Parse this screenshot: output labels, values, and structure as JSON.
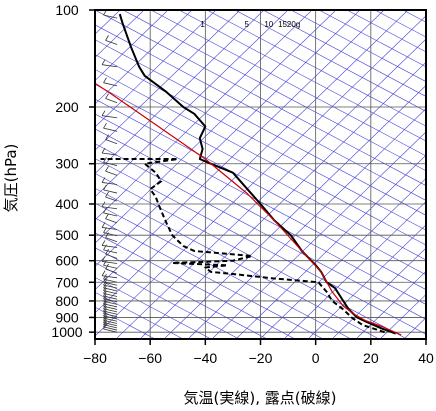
{
  "chart_data": {
    "type": "line",
    "title": "",
    "xlabel": "気温(実線), 露点(破線)",
    "ylabel": "気圧(hPa)",
    "xlim": [
      -80,
      40
    ],
    "ylim": [
      1050,
      100
    ],
    "y_scale": "log",
    "x_ticks": [
      -80,
      -60,
      -40,
      -20,
      0,
      20,
      40
    ],
    "x_tick_labels": [
      "−80",
      "−60",
      "−40",
      "−20",
      "0",
      "20",
      "40"
    ],
    "y_ticks": [
      100,
      200,
      300,
      400,
      500,
      600,
      700,
      800,
      900,
      1000
    ],
    "y_tick_labels": [
      "100",
      "200",
      "300",
      "400",
      "500",
      "600",
      "700",
      "800",
      "900",
      "1000"
    ],
    "mixing_ratio_labels": [
      "1",
      "5",
      "10",
      "15",
      "20g"
    ],
    "mixing_ratio_label_x": [
      -41,
      -25,
      -17,
      -12,
      -8
    ],
    "colors": {
      "temperature": "#000000",
      "dewpoint": "#000000",
      "parcel": "#cc0000",
      "dry_adiabat": "#4444dd",
      "isotherm": "#4444dd",
      "grid": "#555555",
      "wind_barb": "#333333"
    },
    "series": [
      {
        "name": "",
        "style": "solid",
        "points": [
          [
            29,
            1010
          ],
          [
            24,
            975
          ],
          [
            18,
            925
          ],
          [
            15,
            900
          ],
          [
            12,
            850
          ],
          [
            10,
            800
          ],
          [
            7,
            730
          ],
          [
            4,
            700
          ],
          [
            2,
            650
          ],
          [
            0,
            620
          ],
          [
            -5,
            560
          ],
          [
            -9,
            500
          ],
          [
            -15,
            450
          ],
          [
            -20,
            400
          ],
          [
            -26,
            350
          ],
          [
            -30,
            320
          ],
          [
            -38,
            300
          ],
          [
            -42,
            290
          ],
          [
            -41,
            270
          ],
          [
            -42,
            250
          ],
          [
            -40,
            230
          ],
          [
            -44,
            210
          ],
          [
            -48,
            200
          ],
          [
            -54,
            180
          ],
          [
            -62,
            160
          ],
          [
            -64,
            150
          ],
          [
            -67,
            130
          ],
          [
            -70,
            110
          ],
          [
            -71,
            103
          ]
        ]
      },
      {
        "name": "",
        "style": "dashed",
        "points": [
          [
            25,
            1000
          ],
          [
            17,
            950
          ],
          [
            13,
            900
          ],
          [
            10,
            850
          ],
          [
            6,
            800
          ],
          [
            4,
            750
          ],
          [
            1,
            700
          ],
          [
            -16,
            680
          ],
          [
            -30,
            660
          ],
          [
            -38,
            650
          ],
          [
            -40,
            630
          ],
          [
            -32,
            620
          ],
          [
            -52,
            610
          ],
          [
            -30,
            600
          ],
          [
            -23,
            580
          ],
          [
            -44,
            560
          ],
          [
            -48,
            540
          ],
          [
            -52,
            500
          ],
          [
            -54,
            460
          ],
          [
            -56,
            420
          ],
          [
            -57,
            400
          ],
          [
            -58,
            380
          ],
          [
            -60,
            360
          ],
          [
            -56,
            340
          ],
          [
            -58,
            320
          ],
          [
            -62,
            300
          ],
          [
            -50,
            290
          ],
          [
            -78,
            290
          ]
        ]
      },
      {
        "name": "",
        "style": "solid",
        "points": [
          [
            31,
            1020
          ],
          [
            24,
            960
          ],
          [
            18,
            920
          ],
          [
            14,
            880
          ],
          [
            10,
            830
          ],
          [
            6,
            750
          ],
          [
            2,
            650
          ],
          [
            -5,
            560
          ],
          [
            -15,
            450
          ],
          [
            -25,
            370
          ],
          [
            -40,
            290
          ],
          [
            -57,
            230
          ],
          [
            -75,
            180
          ],
          [
            -92,
            145
          ]
        ]
      }
    ],
    "wind_barbs_note": "Wind barbs plotted along the left edge near x = −72"
  }
}
